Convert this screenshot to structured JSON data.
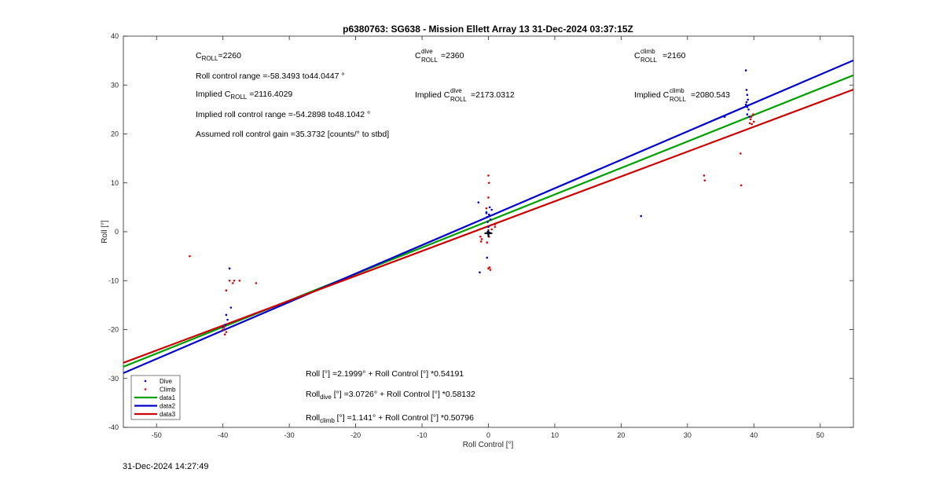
{
  "chart_data": {
    "type": "scatter",
    "title": "p6380763: SG638 - Mission Ellett Array 13 31-Dec-2024 03:37:15Z",
    "xlabel": "Roll Control [°]",
    "ylabel": "Roll [°]",
    "xlim": [
      -55,
      55
    ],
    "ylim": [
      -40,
      40
    ],
    "xticks": [
      -50,
      -40,
      -30,
      -20,
      -10,
      0,
      10,
      20,
      30,
      40,
      50
    ],
    "yticks": [
      -40,
      -30,
      -20,
      -10,
      0,
      10,
      20,
      30,
      40
    ],
    "grid": false,
    "legend_position": "bottom-left",
    "series": [
      {
        "name": "Dive",
        "kind": "points",
        "color": "#0000cc",
        "points": [
          [
            -39.5,
            -17
          ],
          [
            -39.3,
            -18
          ],
          [
            -39,
            -7.5
          ],
          [
            -38.8,
            -15.5
          ],
          [
            -39.6,
            -19
          ],
          [
            -39.8,
            -20
          ],
          [
            -40,
            -19.5
          ],
          [
            -1.5,
            6
          ],
          [
            -1.3,
            -8.3
          ],
          [
            -0.3,
            4
          ],
          [
            -0.2,
            3
          ],
          [
            -0.1,
            2
          ],
          [
            0,
            1
          ],
          [
            0.1,
            3.5
          ],
          [
            0.2,
            5
          ],
          [
            -0.1,
            0
          ],
          [
            0.3,
            2.5
          ],
          [
            0.5,
            4.5
          ],
          [
            -0.2,
            -5.3
          ],
          [
            0,
            -0.5
          ],
          [
            0.2,
            -0.2
          ],
          [
            -0.3,
            3.8
          ],
          [
            23,
            3.2
          ],
          [
            35.6,
            23.5
          ],
          [
            38.8,
            33
          ],
          [
            38.9,
            29
          ],
          [
            39,
            28
          ],
          [
            39.1,
            27
          ],
          [
            38.8,
            26
          ],
          [
            39.2,
            25
          ],
          [
            39,
            24
          ],
          [
            39.3,
            23.5
          ],
          [
            38.9,
            26.5
          ],
          [
            39,
            25.5
          ]
        ]
      },
      {
        "name": "Climb",
        "kind": "points",
        "color": "#e00000",
        "points": [
          [
            -45,
            -5
          ],
          [
            -39.5,
            -12
          ],
          [
            -39,
            -10
          ],
          [
            -38.5,
            -10.5
          ],
          [
            -38.3,
            -10
          ],
          [
            -37.5,
            -10
          ],
          [
            -35,
            -10.5
          ],
          [
            -39.5,
            -20.5
          ],
          [
            -39.7,
            -21
          ],
          [
            -40,
            -20
          ],
          [
            -39.8,
            -19.5
          ],
          [
            0,
            11.5
          ],
          [
            0,
            7
          ],
          [
            -0.3,
            4.8
          ],
          [
            0.1,
            10
          ],
          [
            -1.2,
            -1
          ],
          [
            -1.1,
            -2
          ],
          [
            -1,
            -1.5
          ],
          [
            0.2,
            -7.3
          ],
          [
            0.3,
            -7.8
          ],
          [
            0,
            -7.5
          ],
          [
            1,
            1
          ],
          [
            1,
            1.5
          ],
          [
            0.5,
            0.5
          ],
          [
            -0.2,
            -2.2
          ],
          [
            0.1,
            -1
          ],
          [
            32.5,
            11.5
          ],
          [
            32.6,
            10.5
          ],
          [
            38,
            16
          ],
          [
            38.1,
            9.5
          ],
          [
            39.5,
            23
          ],
          [
            39.7,
            22
          ],
          [
            40,
            22.5
          ],
          [
            39.6,
            23.5
          ],
          [
            39.9,
            24
          ],
          [
            39.4,
            22.2
          ]
        ]
      },
      {
        "name": "data1",
        "kind": "line",
        "color": "#00a000",
        "intercept": 2.1999,
        "slope": 0.54191
      },
      {
        "name": "data2",
        "kind": "line",
        "color": "#0000cc",
        "intercept": 3.0726,
        "slope": 0.58132
      },
      {
        "name": "data3",
        "kind": "line",
        "color": "#cc0000",
        "intercept": 1.141,
        "slope": 0.50796
      }
    ],
    "marker_point": [
      0,
      -0.3
    ]
  },
  "annotations": {
    "c_roll_label": "C",
    "c_roll_sub": "ROLL",
    "c_roll_value": "=2260",
    "c_dive_label": "C",
    "c_dive_sup": "dive",
    "c_dive_sub": "ROLL",
    "c_dive_value": "=2360",
    "c_climb_label": "C",
    "c_climb_sup": "climb",
    "c_climb_sub": "ROLL",
    "c_climb_value": "=2160",
    "roll_range": "Roll control range =-58.3493 to44.0447 °",
    "implied_prefix": "Implied C",
    "implied_sub": "ROLL",
    "implied_value": "=2116.4029",
    "implied_dive_prefix": "Implied C",
    "implied_dive_sup": "dive",
    "implied_dive_sub": "ROLL",
    "implied_dive_value": "=2173.0312",
    "implied_climb_prefix": "Implied C",
    "implied_climb_sup": "climb",
    "implied_climb_sub": "ROLL",
    "implied_climb_value": "=2080.543",
    "implied_range": "Implied roll control range =-54.2898 to48.1042 °",
    "gain": "Assumed roll control gain =35.3732 [counts/° to stbd]",
    "fit_all": "Roll [°] =2.1999° + Roll Control [°] *0.54191",
    "fit_dive_prefix": "Roll",
    "fit_dive_sub": "dive",
    "fit_dive_rest": " [°] =3.0726° + Roll Control [°] *0.58132",
    "fit_climb_prefix": "Roll",
    "fit_climb_sub": "climb",
    "fit_climb_rest": " [°] =1.141° + Roll Control [°] *0.50796"
  },
  "timestamp": "31-Dec-2024 14:27:49"
}
